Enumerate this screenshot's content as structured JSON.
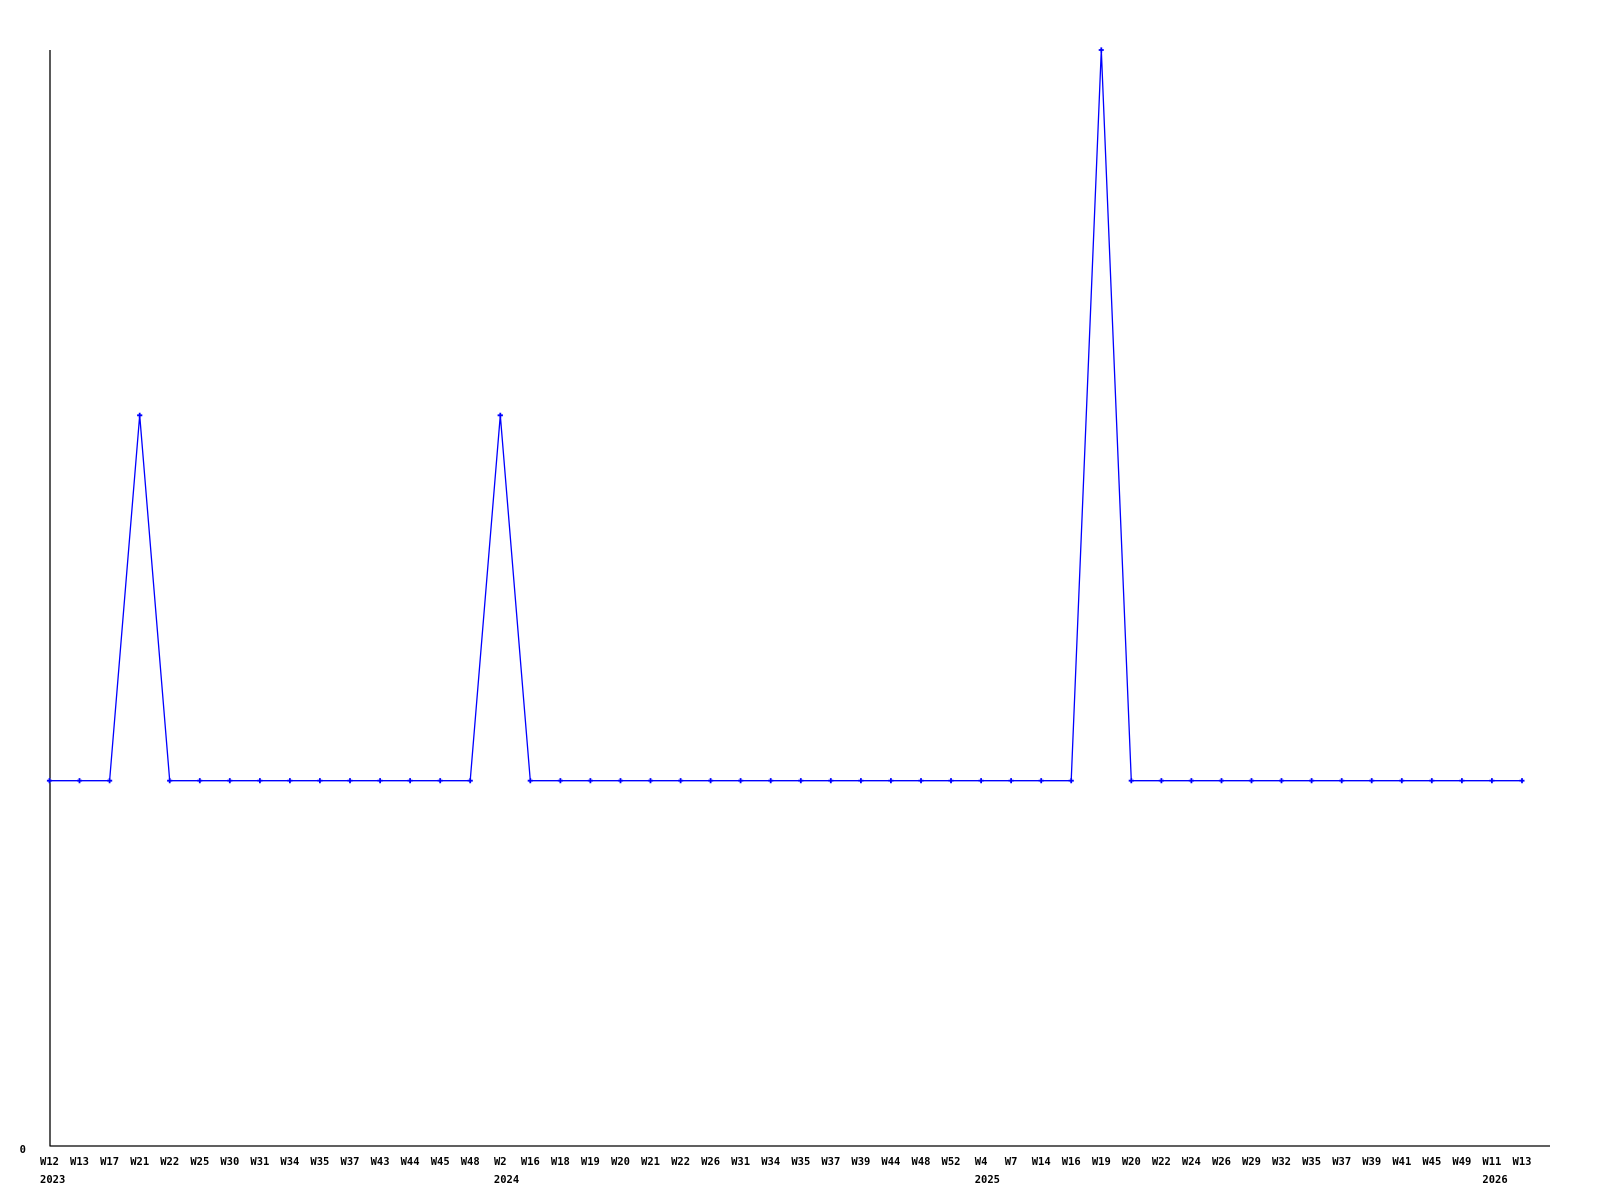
{
  "page": {
    "background": "#ffffff"
  },
  "chart_data": {
    "type": "line",
    "title": "",
    "xlabel": "",
    "ylabel": "",
    "grid": false,
    "legend": {
      "shown": false
    },
    "marker_style": "plus",
    "colors": {
      "line": "#0000ff",
      "marker": "#0000ff",
      "axis": "#000000",
      "text": "#000000"
    },
    "y_axis": {
      "zero_label": "0",
      "ylim": [
        0,
        3
      ]
    },
    "categories": [
      "W12",
      "W13",
      "W17",
      "W21",
      "W22",
      "W25",
      "W30",
      "W31",
      "W34",
      "W35",
      "W37",
      "W43",
      "W44",
      "W45",
      "W48",
      "W2",
      "W16",
      "W18",
      "W19",
      "W20",
      "W21",
      "W22",
      "W26",
      "W31",
      "W34",
      "W35",
      "W37",
      "W39",
      "W44",
      "W48",
      "W52",
      "W4",
      "W7",
      "W14",
      "W16",
      "W19",
      "W20",
      "W22",
      "W24",
      "W26",
      "W29",
      "W32",
      "W35",
      "W37",
      "W39",
      "W41",
      "W45",
      "W49",
      "W11",
      "W13"
    ],
    "year_row": [
      {
        "index": 0,
        "label": "2023"
      },
      {
        "index": 15,
        "label": "2024"
      },
      {
        "index": 31,
        "label": "2025"
      },
      {
        "index": 48,
        "label": "2026"
      }
    ],
    "values": [
      1,
      1,
      1,
      2,
      1,
      1,
      1,
      1,
      1,
      1,
      1,
      1,
      1,
      1,
      1,
      2,
      1,
      1,
      1,
      1,
      1,
      1,
      1,
      1,
      1,
      1,
      1,
      1,
      1,
      1,
      1,
      1,
      1,
      1,
      1,
      3,
      1,
      1,
      1,
      1,
      1,
      1,
      1,
      1,
      1,
      1,
      1,
      1,
      1,
      1
    ]
  }
}
